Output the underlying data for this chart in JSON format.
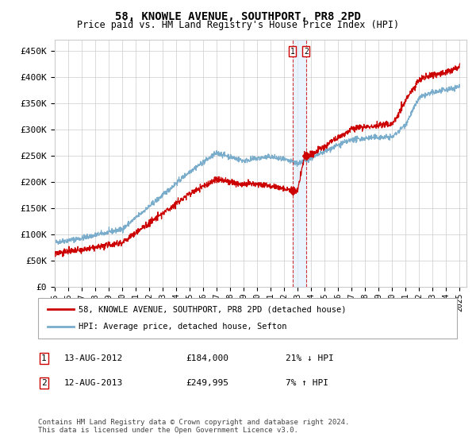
{
  "title": "58, KNOWLE AVENUE, SOUTHPORT, PR8 2PD",
  "subtitle": "Price paid vs. HM Land Registry's House Price Index (HPI)",
  "ylabel_ticks": [
    "£0",
    "£50K",
    "£100K",
    "£150K",
    "£200K",
    "£250K",
    "£300K",
    "£350K",
    "£400K",
    "£450K"
  ],
  "ytick_values": [
    0,
    50000,
    100000,
    150000,
    200000,
    250000,
    300000,
    350000,
    400000,
    450000
  ],
  "ylim": [
    0,
    470000
  ],
  "xlim_start": 1995.0,
  "xlim_end": 2025.5,
  "line1_color": "#cc0000",
  "line2_color": "#7aadcc",
  "annotation1_date": "13-AUG-2012",
  "annotation1_price": "£184,000",
  "annotation1_hpi": "21% ↓ HPI",
  "annotation2_date": "12-AUG-2013",
  "annotation2_price": "£249,995",
  "annotation2_hpi": "7% ↑ HPI",
  "legend_line1": "58, KNOWLE AVENUE, SOUTHPORT, PR8 2PD (detached house)",
  "legend_line2": "HPI: Average price, detached house, Sefton",
  "footnote": "Contains HM Land Registry data © Crown copyright and database right 2024.\nThis data is licensed under the Open Government Licence v3.0.",
  "vline1_x": 2012.617,
  "vline2_x": 2013.617,
  "marker1_x": 2012.617,
  "marker1_y": 184000,
  "marker2_x": 2013.617,
  "marker2_y": 249995,
  "background_color": "#ffffff",
  "grid_color": "#cccccc"
}
